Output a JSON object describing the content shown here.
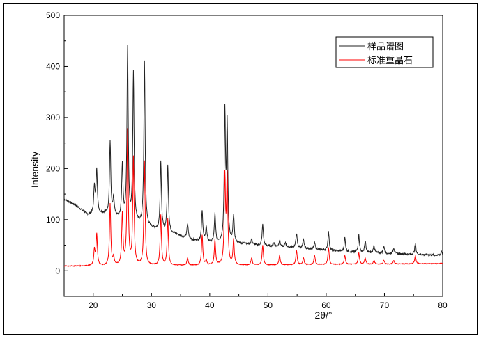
{
  "chart_data": {
    "type": "line",
    "title": "",
    "xlabel": "2θ/°",
    "ylabel": "Intensity",
    "xlim": [
      15,
      80
    ],
    "ylim": [
      -50,
      500
    ],
    "xticks": [
      20,
      30,
      40,
      50,
      60,
      70,
      80
    ],
    "yticks": [
      0,
      100,
      200,
      300,
      400,
      500
    ],
    "grid": false,
    "legend": {
      "position": "top-right",
      "entries": [
        "样品谱图",
        "标准重晶石"
      ]
    },
    "series": [
      {
        "name": "样品谱图",
        "color": "#222222",
        "baseline": [
          [
            15,
            140
          ],
          [
            17,
            128
          ],
          [
            19,
            110
          ],
          [
            22,
            112
          ],
          [
            25,
            100
          ],
          [
            28,
            90
          ],
          [
            31,
            80
          ],
          [
            34,
            72
          ],
          [
            37,
            60
          ],
          [
            40,
            55
          ],
          [
            45,
            53
          ],
          [
            50,
            48
          ],
          [
            55,
            45
          ],
          [
            60,
            40
          ],
          [
            65,
            36
          ],
          [
            70,
            34
          ],
          [
            75,
            32
          ],
          [
            80,
            30
          ]
        ],
        "peaks": [
          [
            20.2,
            165
          ],
          [
            20.6,
            197
          ],
          [
            22.9,
            252
          ],
          [
            23.5,
            140
          ],
          [
            25.0,
            207
          ],
          [
            25.9,
            434
          ],
          [
            26.9,
            386
          ],
          [
            28.8,
            407
          ],
          [
            31.6,
            213
          ],
          [
            32.8,
            207
          ],
          [
            36.2,
            92
          ],
          [
            38.7,
            118
          ],
          [
            39.4,
            85
          ],
          [
            40.9,
            110
          ],
          [
            42.6,
            303
          ],
          [
            43.0,
            280
          ],
          [
            44.1,
            107
          ],
          [
            46.1,
            55
          ],
          [
            47.2,
            62
          ],
          [
            49.1,
            90
          ],
          [
            51.0,
            55
          ],
          [
            52.0,
            60
          ],
          [
            53.0,
            55
          ],
          [
            54.9,
            73
          ],
          [
            56.1,
            60
          ],
          [
            58.0,
            55
          ],
          [
            60.4,
            76
          ],
          [
            63.2,
            65
          ],
          [
            65.6,
            70
          ],
          [
            66.7,
            58
          ],
          [
            68.2,
            50
          ],
          [
            69.9,
            48
          ],
          [
            71.6,
            45
          ],
          [
            75.3,
            53
          ],
          [
            79.8,
            38
          ]
        ]
      },
      {
        "name": "标准重晶石",
        "color": "#ff0000",
        "baseline": [
          [
            15,
            9
          ],
          [
            30,
            10
          ],
          [
            50,
            11
          ],
          [
            80,
            14
          ]
        ],
        "peaks": [
          [
            20.2,
            40
          ],
          [
            20.6,
            70
          ],
          [
            22.9,
            130
          ],
          [
            23.5,
            25
          ],
          [
            25.0,
            110
          ],
          [
            25.9,
            272
          ],
          [
            26.9,
            220
          ],
          [
            28.8,
            213
          ],
          [
            31.6,
            108
          ],
          [
            32.8,
            100
          ],
          [
            36.2,
            25
          ],
          [
            38.7,
            70
          ],
          [
            39.4,
            20
          ],
          [
            40.9,
            60
          ],
          [
            42.6,
            180
          ],
          [
            43.0,
            180
          ],
          [
            44.1,
            60
          ],
          [
            47.2,
            25
          ],
          [
            49.1,
            50
          ],
          [
            52.0,
            30
          ],
          [
            54.9,
            40
          ],
          [
            56.1,
            25
          ],
          [
            58.0,
            30
          ],
          [
            60.4,
            45
          ],
          [
            63.2,
            30
          ],
          [
            65.6,
            35
          ],
          [
            66.7,
            25
          ],
          [
            68.2,
            20
          ],
          [
            69.9,
            20
          ],
          [
            71.6,
            20
          ],
          [
            75.3,
            30
          ],
          [
            79.8,
            15
          ]
        ]
      }
    ]
  }
}
